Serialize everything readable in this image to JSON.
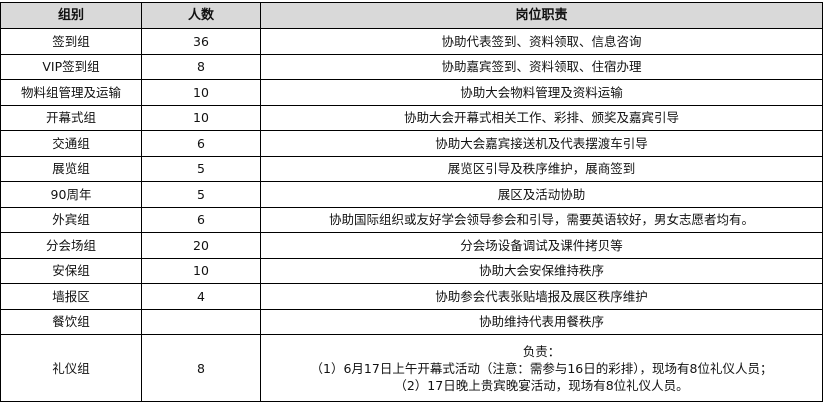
{
  "table": {
    "headers": [
      "组别",
      "人数",
      "岗位职责"
    ],
    "rows": [
      {
        "group": "签到组",
        "count": "36",
        "duty": "协助代表签到、资料领取、信息咨询"
      },
      {
        "group": "VIP签到组",
        "count": "8",
        "duty": "协助嘉宾签到、资料领取、住宿办理"
      },
      {
        "group": "物料组管理及运输",
        "count": "10",
        "duty": "协助大会物料管理及资料运输"
      },
      {
        "group": "开幕式组",
        "count": "10",
        "duty": "协助大会开幕式相关工作、彩排、颁奖及嘉宾引导"
      },
      {
        "group": "交通组",
        "count": "6",
        "duty": "协助大会嘉宾接送机及代表摆渡车引导"
      },
      {
        "group": "展览组",
        "count": "5",
        "duty": "展览区引导及秩序维护，展商签到"
      },
      {
        "group": "90周年",
        "count": "5",
        "duty": "展区及活动协助"
      },
      {
        "group": "外宾组",
        "count": "6",
        "duty": "协助国际组织或友好学会领导参会和引导，需要英语较好，男女志愿者均有。"
      },
      {
        "group": "分会场组",
        "count": "20",
        "duty": "分会场设备调试及课件拷贝等"
      },
      {
        "group": "安保组",
        "count": "10",
        "duty": "协助大会安保维持秩序"
      },
      {
        "group": "墙报区",
        "count": "4",
        "duty": "协助参会代表张贴墙报及展区秩序维护"
      },
      {
        "group": "餐饮组",
        "count": "",
        "duty": "协助维持代表用餐秩序"
      }
    ],
    "last_row": {
      "group": "礼仪组",
      "count": "8",
      "duty_lines": [
        "负责：",
        "（1）6月17日上午开幕式活动（注意：需参与16日的彩排），现场有8位礼仪人员；",
        "（2）17日晚上贵宾晚宴活动，现场有8位礼仪人员。"
      ]
    }
  }
}
